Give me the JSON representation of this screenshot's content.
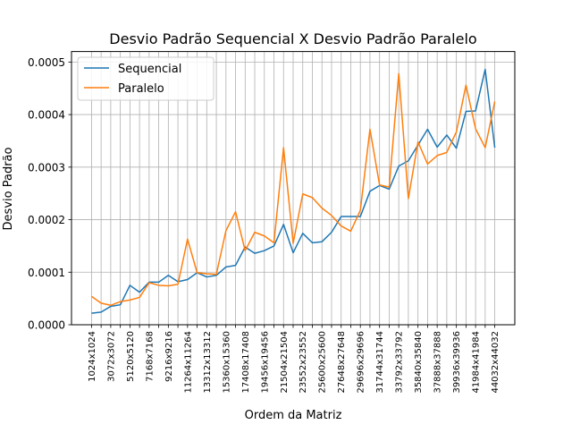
{
  "chart_data": {
    "type": "line",
    "title": "Desvio Padrão Sequencial X Desvio Padrão Paralelo",
    "xlabel": "Ordem da Matriz",
    "ylabel": "Desvio Padrão",
    "ylim": [
      0,
      0.00052
    ],
    "y_ticks": [
      "0.0000",
      "0.0001",
      "0.0002",
      "0.0003",
      "0.0004",
      "0.0005"
    ],
    "grid": true,
    "legend_position": "upper-left",
    "x_tick_labels": [
      "1024x1024",
      "3072x3072",
      "5120x5120",
      "7168x7168",
      "9216x9216",
      "11264x11264",
      "13312x13312",
      "15360x15360",
      "17408x17408",
      "19456x19456",
      "21504x21504",
      "23552x23552",
      "25600x25600",
      "27648x27648",
      "29696x29696",
      "31744x31744",
      "33792x33792",
      "35840x35840",
      "37888x37888",
      "39936x39936",
      "41984x41984",
      "44032x44032"
    ],
    "x": [
      1024,
      2048,
      3072,
      4096,
      5120,
      6144,
      7168,
      8192,
      9216,
      10240,
      11264,
      12288,
      13312,
      14336,
      15360,
      16384,
      17408,
      18432,
      19456,
      20480,
      21504,
      22528,
      23552,
      24576,
      25600,
      26624,
      27648,
      28672,
      29696,
      30720,
      31744,
      32768,
      33792,
      34816,
      35840,
      36864,
      37888,
      38912,
      39936,
      40960,
      41984,
      43008,
      44032
    ],
    "series": [
      {
        "name": "Sequencial",
        "color": "#1f77b4",
        "values": [
          2.2e-05,
          2.4e-05,
          3.5e-05,
          3.8e-05,
          7.5e-05,
          6.2e-05,
          8.1e-05,
          8.1e-05,
          9.4e-05,
          8.2e-05,
          8.6e-05,
          9.9e-05,
          9.1e-05,
          9.4e-05,
          0.00011,
          0.000113,
          0.000148,
          0.000136,
          0.000141,
          0.00015,
          0.000191,
          0.000137,
          0.000174,
          0.000156,
          0.000158,
          0.000176,
          0.000206,
          0.000206,
          0.000206,
          0.000254,
          0.000265,
          0.000258,
          0.000302,
          0.000312,
          0.000342,
          0.000372,
          0.000338,
          0.000361,
          0.000336,
          0.000406,
          0.000407,
          0.000486,
          0.000337
        ]
      },
      {
        "name": "Paralelo",
        "color": "#ff7f0e",
        "values": [
          5.4e-05,
          4.1e-05,
          3.7e-05,
          4.4e-05,
          4.7e-05,
          5.2e-05,
          8e-05,
          7.5e-05,
          7.4e-05,
          7.7e-05,
          0.000163,
          9.9e-05,
          9.7e-05,
          9.6e-05,
          0.000179,
          0.000215,
          0.000141,
          0.000176,
          0.000169,
          0.000156,
          0.000337,
          0.000155,
          0.000249,
          0.000242,
          0.000222,
          0.000208,
          0.000188,
          0.000178,
          0.000218,
          0.000372,
          0.000266,
          0.000262,
          0.000478,
          0.00024,
          0.000348,
          0.000306,
          0.000322,
          0.000328,
          0.000367,
          0.000456,
          0.000373,
          0.000337,
          0.000425
        ]
      }
    ]
  }
}
